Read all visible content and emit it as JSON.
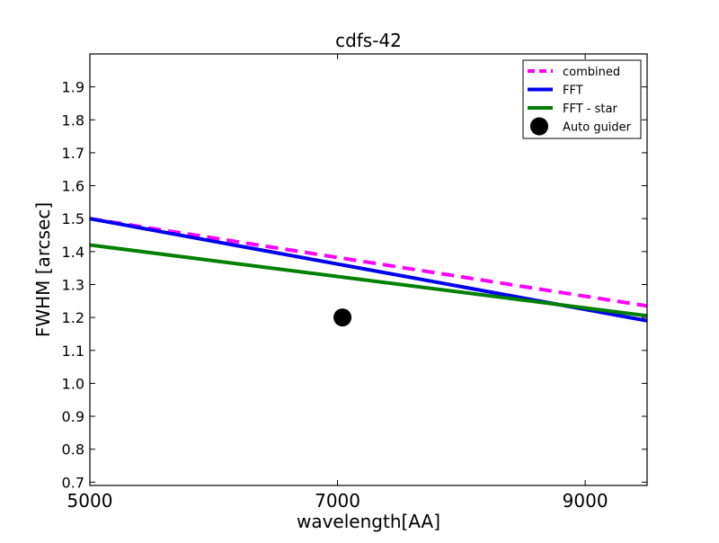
{
  "chart_data": {
    "type": "line",
    "title": "cdfs-42",
    "xlabel": "wavelength[AA]",
    "ylabel": "FWHM [arcsec]",
    "xlim": [
      5000,
      9500
    ],
    "ylim": [
      0.69,
      2.0
    ],
    "x_ticks": [
      5000,
      7000,
      9000
    ],
    "x_tick_labels": [
      "5000",
      "7000",
      "9000"
    ],
    "y_ticks": [
      0.7,
      0.8,
      0.9,
      1.0,
      1.1,
      1.2,
      1.3,
      1.4,
      1.5,
      1.6,
      1.7,
      1.8,
      1.9
    ],
    "y_tick_labels": [
      "0.7",
      "0.8",
      "0.9",
      "1.0",
      "1.1",
      "1.2",
      "1.3",
      "1.4",
      "1.5",
      "1.6",
      "1.7",
      "1.8",
      "1.9"
    ],
    "grid": false,
    "legend_position": "top-right",
    "series": [
      {
        "name": "combined",
        "style": "dashed",
        "color": "#ff00ff",
        "x": [
          5000,
          9500
        ],
        "y": [
          1.5,
          1.235
        ]
      },
      {
        "name": "FFT",
        "style": "solid",
        "color": "#0000ee",
        "x": [
          5000,
          9500
        ],
        "y": [
          1.5,
          1.19
        ]
      },
      {
        "name": "FFT - star",
        "style": "solid",
        "color": "#008000",
        "x": [
          5000,
          9500
        ],
        "y": [
          1.42,
          1.205
        ]
      },
      {
        "name": "Auto guider",
        "style": "marker",
        "color": "#000000",
        "x": [
          7040
        ],
        "y": [
          1.2
        ]
      }
    ]
  }
}
